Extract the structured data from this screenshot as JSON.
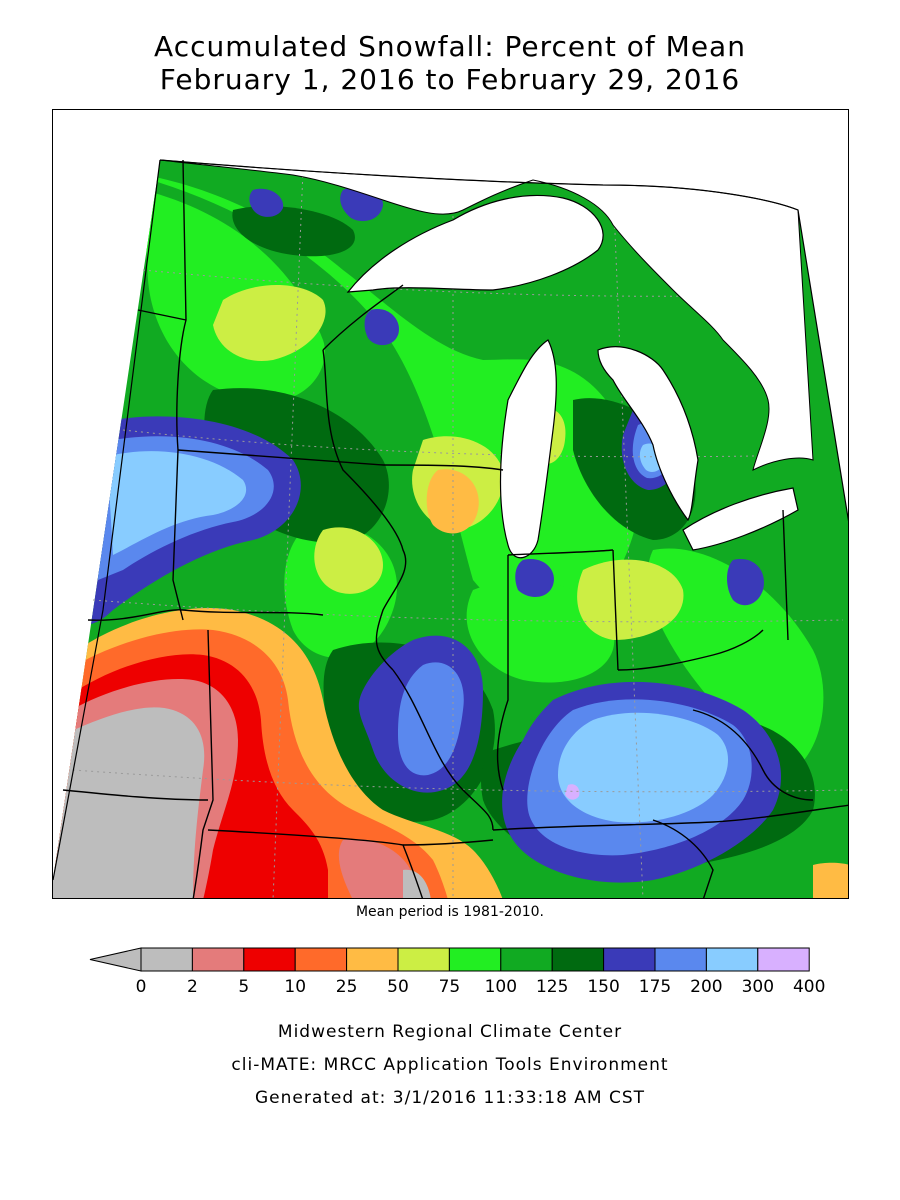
{
  "title": {
    "line1": "Accumulated Snowfall: Percent of Mean",
    "line2": "February 1, 2016 to February 29, 2016"
  },
  "mean_period_note": "Mean period is 1981-2010.",
  "legend": {
    "bins": [
      {
        "from": "0",
        "to": "2",
        "color": "#bdbdbd"
      },
      {
        "from": "2",
        "to": "5",
        "color": "#e47b7b"
      },
      {
        "from": "5",
        "to": "10",
        "color": "#ee0000"
      },
      {
        "from": "10",
        "to": "25",
        "color": "#ff6a2a"
      },
      {
        "from": "25",
        "to": "50",
        "color": "#ffbb44"
      },
      {
        "from": "50",
        "to": "75",
        "color": "#ccee44"
      },
      {
        "from": "75",
        "to": "100",
        "color": "#22ee22"
      },
      {
        "from": "100",
        "to": "125",
        "color": "#11aa22"
      },
      {
        "from": "125",
        "to": "150",
        "color": "#006a10"
      },
      {
        "from": "150",
        "to": "175",
        "color": "#3a3ab8"
      },
      {
        "from": "175",
        "to": "200",
        "color": "#5a88ee"
      },
      {
        "from": "200",
        "to": "300",
        "color": "#88ccff"
      },
      {
        "from": "300",
        "to": "400",
        "color": "#d8b0ff"
      }
    ],
    "tick_labels": [
      "0",
      "2",
      "5",
      "10",
      "25",
      "50",
      "75",
      "100",
      "125",
      "150",
      "175",
      "200",
      "300",
      "400"
    ],
    "under_arrow_color": "#bdbdbd"
  },
  "credits": {
    "line1": "Midwestern Regional Climate Center",
    "line2": "cli-MATE: MRCC Application Tools Environment",
    "line3": "Generated at: 3/1/2016 11:33:18 AM CST"
  }
}
